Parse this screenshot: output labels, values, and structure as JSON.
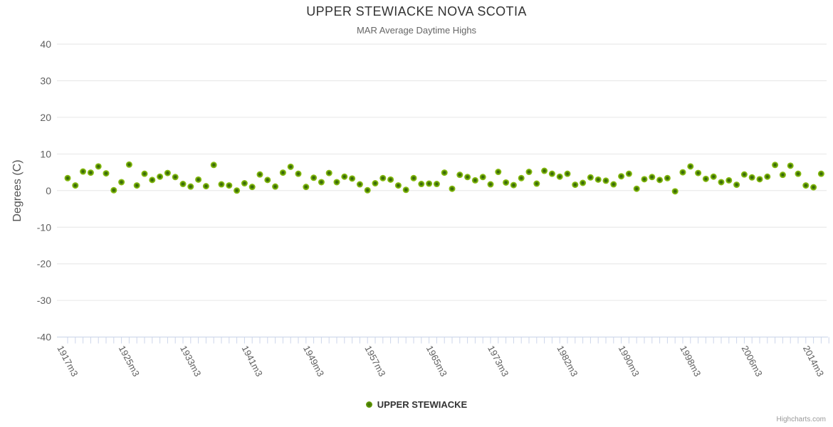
{
  "header": {
    "title": "UPPER STEWIACKE NOVA SCOTIA",
    "subtitle": "MAR Average Daytime Highs"
  },
  "y_axis": {
    "title": "Degrees (C)",
    "tick_labels": [
      "40",
      "30",
      "20",
      "10",
      "0",
      "-10",
      "-20",
      "-30",
      "-40"
    ],
    "tick_values": [
      40,
      30,
      20,
      10,
      0,
      -10,
      -20,
      -30,
      -40
    ]
  },
  "x_axis": {
    "tick_labels": [
      "1917m3",
      "1925m3",
      "1933m3",
      "1941m3",
      "1949m3",
      "1957m3",
      "1965m3",
      "1973m3",
      "1982m3",
      "1990m3",
      "1998m3",
      "2006m3",
      "2014m3"
    ],
    "tick_indices": [
      0,
      8,
      16,
      24,
      32,
      40,
      48,
      56,
      65,
      73,
      81,
      89,
      97
    ]
  },
  "legend": {
    "series_label": "UPPER STEWIACKE"
  },
  "credits": {
    "label": "Highcharts.com"
  },
  "colors": {
    "background": "#ffffff",
    "grid": "#e6e6e6",
    "axis_line": "#ccd6eb",
    "tick": "#ccd6eb",
    "title_text": "#333333",
    "subtitle_text": "#666666",
    "axis_label_text": "#606060",
    "marker_center": "#38670a",
    "marker_mid": "#558c05",
    "marker_edge": "#86ba12"
  },
  "chart_data": {
    "type": "scatter",
    "title": "UPPER STEWIACKE NOVA SCOTIA",
    "subtitle": "MAR Average Daytime Highs",
    "xlabel": "",
    "ylabel": "Degrees (C)",
    "ylim": [
      -40,
      40
    ],
    "grid": true,
    "legend_position": "bottom-center",
    "x_start_year": 1917,
    "x_step": 1,
    "x_suffix": "m3",
    "x_tick_labels": [
      "1917m3",
      "1925m3",
      "1933m3",
      "1941m3",
      "1949m3",
      "1957m3",
      "1965m3",
      "1973m3",
      "1982m3",
      "1990m3",
      "1998m3",
      "2006m3",
      "2014m3"
    ],
    "series": [
      {
        "name": "UPPER STEWIACKE",
        "values": [
          3.4,
          1.4,
          5.2,
          4.9,
          6.6,
          4.7,
          0.1,
          2.3,
          7.1,
          1.4,
          4.6,
          2.9,
          3.8,
          4.8,
          3.7,
          1.8,
          1.1,
          3.0,
          1.2,
          7.0,
          1.7,
          1.4,
          0.0,
          2.0,
          1.0,
          4.4,
          2.9,
          1.1,
          4.9,
          6.5,
          4.6,
          1.0,
          3.5,
          2.3,
          4.8,
          2.3,
          3.8,
          3.3,
          1.7,
          0.1,
          2.0,
          3.4,
          3.0,
          1.4,
          0.2,
          3.4,
          1.8,
          1.9,
          1.8,
          4.9,
          0.5,
          4.3,
          3.7,
          2.8,
          3.7,
          1.7,
          5.1,
          2.2,
          1.5,
          3.4,
          5.1,
          1.9,
          5.4,
          4.6,
          3.8,
          4.6,
          1.6,
          2.1,
          3.6,
          3.0,
          2.7,
          1.7,
          3.9,
          4.6,
          0.5,
          3.1,
          3.7,
          2.9,
          3.4,
          -0.2,
          5.0,
          6.6,
          4.8,
          3.2,
          3.8,
          2.3,
          2.8,
          1.6,
          4.4,
          3.6,
          3.1,
          3.8,
          7.0,
          4.3,
          6.8,
          4.6,
          1.4,
          0.9,
          4.6
        ]
      }
    ]
  }
}
